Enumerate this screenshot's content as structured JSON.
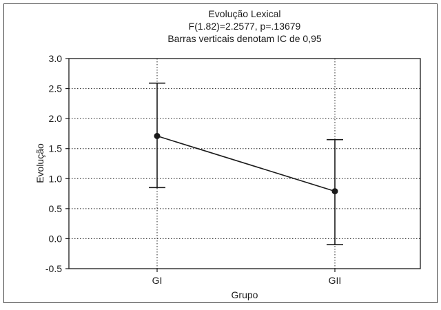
{
  "chart_data": {
    "type": "line",
    "title": "Evolução Lexical",
    "subtitle_lines": [
      "F(1.82)=2.2577, p=.13679",
      "Barras verticais denotam IC de 0,95"
    ],
    "xlabel": "Grupo",
    "ylabel": "Evolução",
    "categories": [
      "GI",
      "GII"
    ],
    "series": [
      {
        "values": [
          1.71,
          0.79
        ],
        "ci_lower": [
          0.85,
          -0.1
        ],
        "ci_upper": [
          2.59,
          1.65
        ]
      }
    ],
    "ylim": [
      -0.5,
      3.0
    ],
    "yticks": [
      -0.5,
      0.0,
      0.5,
      1.0,
      1.5,
      2.0,
      2.5,
      3.0
    ],
    "ytick_labels": [
      "-0.5",
      "0.0",
      "0.5",
      "1.0",
      "1.5",
      "2.0",
      "2.5",
      "3.0"
    ],
    "grid": true
  }
}
